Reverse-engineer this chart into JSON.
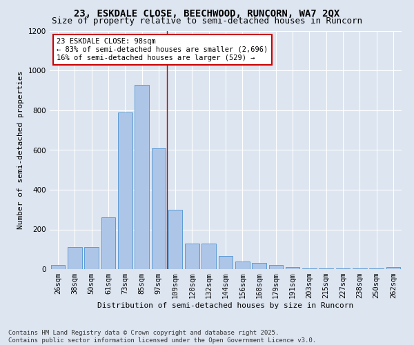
{
  "title_line1": "23, ESKDALE CLOSE, BEECHWOOD, RUNCORN, WA7 2QX",
  "title_line2": "Size of property relative to semi-detached houses in Runcorn",
  "categories": [
    "26sqm",
    "38sqm",
    "50sqm",
    "61sqm",
    "73sqm",
    "85sqm",
    "97sqm",
    "109sqm",
    "120sqm",
    "132sqm",
    "144sqm",
    "156sqm",
    "168sqm",
    "179sqm",
    "191sqm",
    "203sqm",
    "215sqm",
    "227sqm",
    "238sqm",
    "250sqm",
    "262sqm"
  ],
  "values": [
    20,
    110,
    110,
    260,
    790,
    930,
    610,
    300,
    130,
    130,
    65,
    40,
    30,
    20,
    10,
    5,
    5,
    2,
    2,
    2,
    10
  ],
  "bar_color": "#adc6e8",
  "bar_edge_color": "#5b9bd5",
  "background_color": "#dde5f0",
  "grid_color": "#ffffff",
  "ylabel": "Number of semi-detached properties",
  "xlabel": "Distribution of semi-detached houses by size in Runcorn",
  "ylim": [
    0,
    1200
  ],
  "yticks": [
    0,
    200,
    400,
    600,
    800,
    1000,
    1200
  ],
  "vline_x": 6.5,
  "vline_color": "#cc0000",
  "annotation_line1": "23 ESKDALE CLOSE: 98sqm",
  "annotation_line2": "← 83% of semi-detached houses are smaller (2,696)",
  "annotation_line3": "16% of semi-detached houses are larger (529) →",
  "annotation_box_color": "#ffffff",
  "annotation_box_edge": "#cc0000",
  "footer_line1": "Contains HM Land Registry data © Crown copyright and database right 2025.",
  "footer_line2": "Contains public sector information licensed under the Open Government Licence v3.0.",
  "title_fontsize": 10,
  "subtitle_fontsize": 9,
  "axis_label_fontsize": 8,
  "tick_fontsize": 7.5,
  "annotation_fontsize": 7.5,
  "footer_fontsize": 6.5
}
